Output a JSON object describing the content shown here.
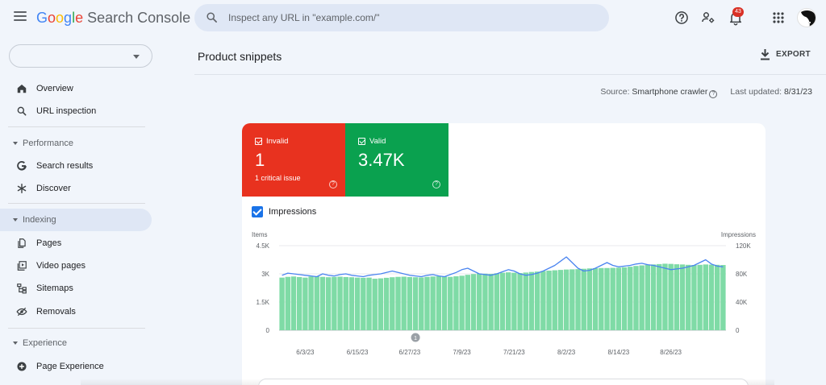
{
  "header": {
    "logo": {
      "g1": "G",
      "g2": "o",
      "g3": "o",
      "g4": "g",
      "g5": "l",
      "g6": "e",
      "product": "Search Console"
    },
    "search_placeholder": "Inspect any URL in \"example.com/\"",
    "notification_count": "43",
    "icons": [
      "menu-icon",
      "search-icon",
      "help-icon",
      "manage-users-icon",
      "notifications-icon",
      "apps-grid-icon",
      "avatar"
    ]
  },
  "sidebar": {
    "property_value": "",
    "top_items": [
      {
        "label": "Overview",
        "icon": "home-icon"
      },
      {
        "label": "URL inspection",
        "icon": "search-icon"
      }
    ],
    "sections": [
      {
        "title": "Performance",
        "items": [
          {
            "label": "Search results",
            "icon": "google-g-icon"
          },
          {
            "label": "Discover",
            "icon": "asterisk-icon"
          }
        ]
      },
      {
        "title": "Indexing",
        "active": true,
        "items": [
          {
            "label": "Pages",
            "icon": "pages-icon"
          },
          {
            "label": "Video pages",
            "icon": "video-pages-icon"
          },
          {
            "label": "Sitemaps",
            "icon": "sitemap-icon"
          },
          {
            "label": "Removals",
            "icon": "removals-icon"
          }
        ]
      },
      {
        "title": "Experience",
        "items": [
          {
            "label": "Page Experience",
            "icon": "page-experience-icon"
          }
        ]
      }
    ]
  },
  "main": {
    "page_title": "Product snippets",
    "export_label": "EXPORT",
    "source_label": "Source:",
    "source_value": "Smartphone crawler",
    "updated_label": "Last updated:",
    "updated_value": "8/31/23",
    "tiles": {
      "invalid": {
        "label": "Invalid",
        "value": "1",
        "sub": "1 critical issue",
        "color": "#e8321f"
      },
      "valid": {
        "label": "Valid",
        "value": "3.47K",
        "color": "#0aa14f"
      }
    },
    "impressions_checkbox": {
      "label": "Impressions",
      "checked": true
    }
  },
  "chart_data": {
    "type": "bar",
    "left_axis_label": "Items",
    "right_axis_label": "Impressions",
    "left_ticks": [
      "0",
      "1.5K",
      "3K",
      "4.5K"
    ],
    "left_tick_values": [
      0,
      1500,
      3000,
      4500
    ],
    "right_ticks": [
      "0",
      "40K",
      "80K",
      "120K"
    ],
    "right_tick_values": [
      0,
      40000,
      80000,
      120000
    ],
    "x_tick_labels": [
      "6/3/23",
      "6/15/23",
      "6/27/23",
      "7/9/23",
      "7/21/23",
      "8/2/23",
      "8/14/23",
      "8/26/23"
    ],
    "annotation_marker": "1",
    "bar_color": "#7fdba6",
    "line_color": "#4a84f0",
    "series": [
      {
        "name": "Valid",
        "values": [
          2800,
          2840,
          2860,
          2830,
          2800,
          2860,
          2870,
          2840,
          2820,
          2840,
          2850,
          2830,
          2820,
          2800,
          2790,
          2800,
          2740,
          2760,
          2790,
          2820,
          2840,
          2850,
          2830,
          2820,
          2810,
          2840,
          2860,
          2870,
          2850,
          2840,
          2870,
          2900,
          2950,
          2990,
          3020,
          3010,
          3000,
          3030,
          3060,
          3080,
          3060,
          3040,
          3070,
          3100,
          3120,
          3150,
          3170,
          3190,
          3210,
          3230,
          3240,
          3250,
          3270,
          3290,
          3300,
          3310,
          3310,
          3320,
          3330,
          3350,
          3380,
          3420,
          3450,
          3480,
          3500,
          3520,
          3540,
          3530,
          3510,
          3500,
          3480,
          3470,
          3480,
          3500,
          3490,
          3480,
          3470
        ]
      },
      {
        "name": "Impressions",
        "values": [
          78000,
          81000,
          80000,
          79000,
          78000,
          77000,
          76000,
          80000,
          78000,
          77000,
          79000,
          80000,
          78000,
          77000,
          76000,
          78000,
          79000,
          80000,
          82000,
          84000,
          82000,
          80000,
          78000,
          77000,
          76000,
          78000,
          79000,
          77000,
          76000,
          79000,
          82000,
          86000,
          88000,
          84000,
          80000,
          79000,
          78000,
          80000,
          83000,
          86000,
          84000,
          80000,
          78000,
          79000,
          81000,
          84000,
          88000,
          92000,
          98000,
          104000,
          96000,
          88000,
          84000,
          85000,
          88000,
          92000,
          96000,
          92000,
          90000,
          91000,
          92000,
          94000,
          95000,
          93000,
          92000,
          90000,
          88000,
          86000,
          87000,
          88000,
          90000,
          92000,
          96000,
          100000,
          94000,
          91000,
          90000
        ]
      }
    ]
  }
}
